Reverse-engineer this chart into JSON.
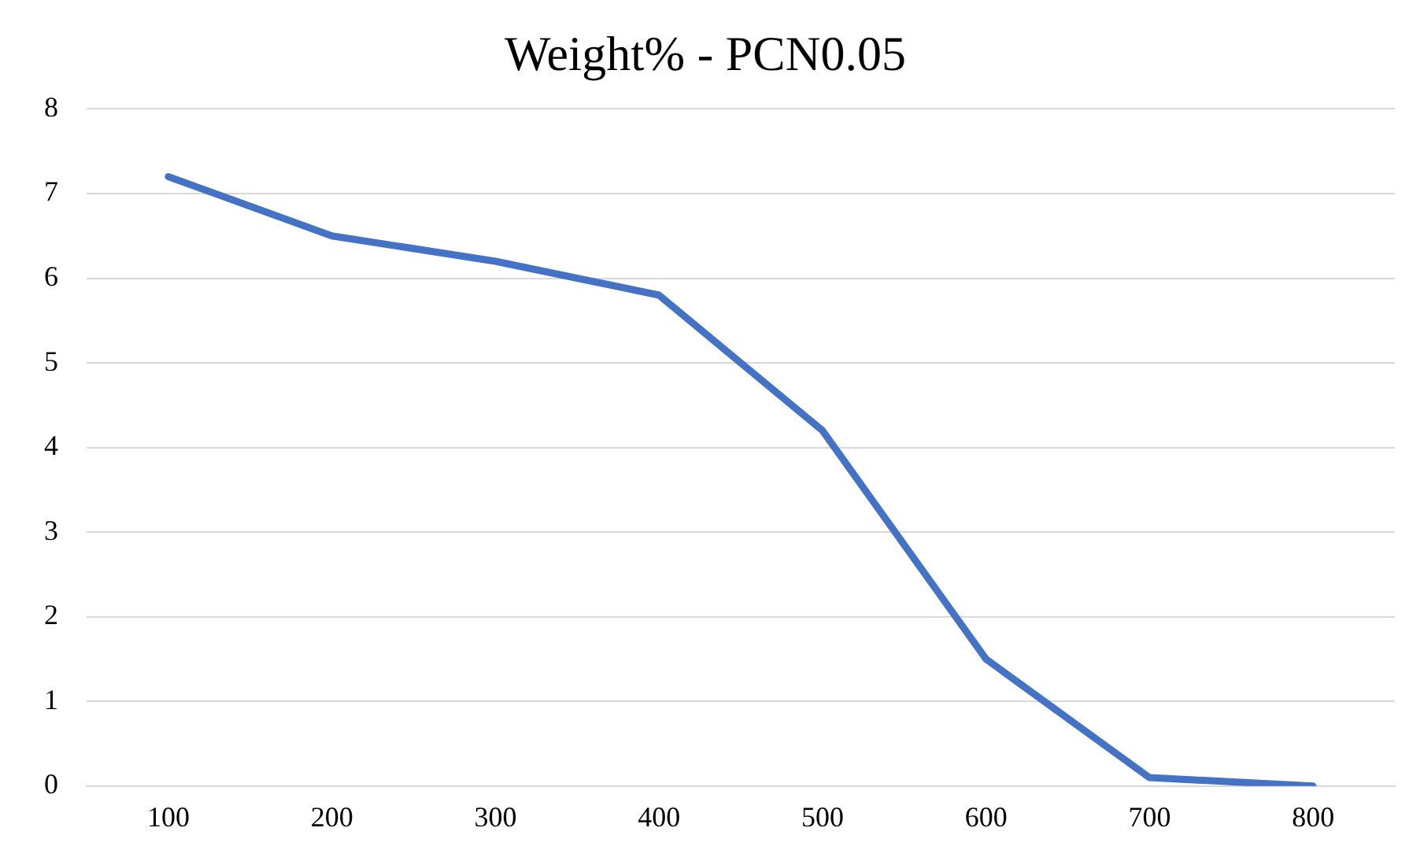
{
  "chart_data": {
    "type": "line",
    "title": "Weight% - PCN0.05",
    "categories": [
      "100",
      "200",
      "300",
      "400",
      "500",
      "600",
      "700",
      "800"
    ],
    "series": [
      {
        "color": "#4472c4",
        "values": [
          7.2,
          6.5,
          6.2,
          5.8,
          4.2,
          1.5,
          0.1,
          0.0
        ]
      }
    ],
    "ylim": [
      0,
      8
    ],
    "yticks": [
      0,
      1,
      2,
      3,
      4,
      5,
      6,
      7,
      8
    ],
    "grid": "y",
    "legend": false,
    "marker": "none",
    "line_style": "solid"
  }
}
